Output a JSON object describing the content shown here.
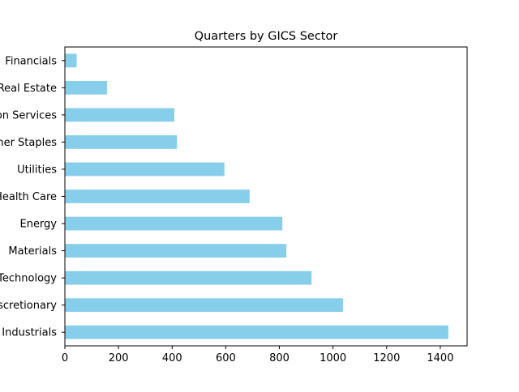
{
  "chart_data": {
    "type": "bar",
    "orientation": "horizontal",
    "title": "Quarters by GICS Sector",
    "xlabel": "",
    "ylabel": "",
    "categories": [
      "Industrials",
      "Consumer Discretionary",
      "Information Technology",
      "Materials",
      "Energy",
      "Health Care",
      "Utilities",
      "Consumer Staples",
      "Communication Services",
      "Real Estate",
      "Financials"
    ],
    "values": [
      1430,
      1037,
      920,
      826,
      811,
      689,
      595,
      418,
      408,
      157,
      44
    ],
    "xlim": [
      0,
      1500
    ],
    "xticks": [
      0,
      200,
      400,
      600,
      800,
      1000,
      1200,
      1400
    ],
    "bar_color": "#87CEEB",
    "grid": false,
    "legend": "none"
  }
}
